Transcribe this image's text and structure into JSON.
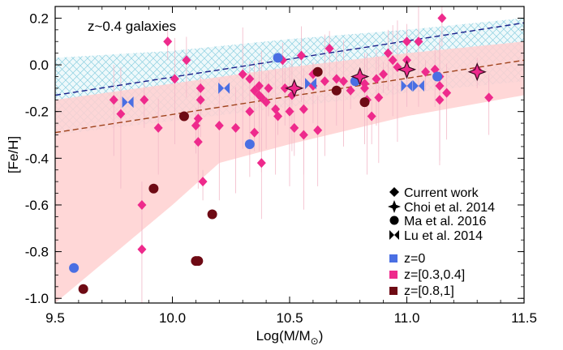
{
  "chart_data": {
    "type": "scatter",
    "title": "",
    "annotation": "z~0.4 galaxies",
    "xlabel": "Log(M/M",
    "xlabel_sub": "⊙",
    "xlabel_close": ")",
    "ylabel": "[Fe/H]",
    "xlim": [
      9.5,
      11.5
    ],
    "ylim": [
      -1.02,
      0.25
    ],
    "xticks": [
      "9.5",
      "10.0",
      "10.5",
      "11.0",
      "11.5"
    ],
    "yticks": [
      "-1.0",
      "-0.8",
      "-0.6",
      "-0.4",
      "-0.2",
      "0.0",
      "0.2"
    ],
    "grid": false,
    "legend_position": "bottom-right",
    "colors": {
      "blue": "#4a6fe3",
      "pink": "#ee2a8c",
      "darkred": "#6e0a14",
      "blue_band": "#9fd8e6",
      "pink_band": "#ffd0d0",
      "blue_line": "#1a1f8a",
      "brown_line": "#a0431c"
    },
    "legend_markers": [
      {
        "marker": "diamond",
        "label": "Current work"
      },
      {
        "marker": "star4",
        "label": "Choi et al. 2014"
      },
      {
        "marker": "circle",
        "label": "Ma et al. 2016"
      },
      {
        "marker": "bowtie",
        "label": "Lu et al. 2014"
      }
    ],
    "legend_colors": [
      {
        "color": "blue",
        "label": "z=0"
      },
      {
        "color": "pink",
        "label": "z=[0.3,0.4]"
      },
      {
        "color": "darkred",
        "label": "z=[0.8,1]"
      }
    ],
    "bands": {
      "blue_upper": [
        [
          9.5,
          0.03
        ],
        [
          10.0,
          0.06
        ],
        [
          10.5,
          0.11
        ],
        [
          11.0,
          0.15
        ],
        [
          11.5,
          0.2
        ]
      ],
      "blue_lower": [
        [
          9.5,
          -0.3
        ],
        [
          10.0,
          -0.24
        ],
        [
          10.5,
          -0.18
        ],
        [
          11.0,
          -0.12
        ],
        [
          11.5,
          -0.07
        ]
      ],
      "pink_upper": [
        [
          9.5,
          -0.15
        ],
        [
          10.0,
          -0.08
        ],
        [
          10.5,
          -0.01
        ],
        [
          11.0,
          0.05
        ],
        [
          11.5,
          0.1
        ]
      ],
      "pink_lower": [
        [
          9.5,
          -1.02
        ],
        [
          10.0,
          -0.6
        ],
        [
          10.2,
          -0.42
        ],
        [
          10.5,
          -0.34
        ],
        [
          11.0,
          -0.22
        ],
        [
          11.5,
          -0.13
        ]
      ]
    },
    "lines": [
      {
        "color": "blue_line",
        "x": [
          9.5,
          11.5
        ],
        "y": [
          -0.13,
          0.18
        ]
      },
      {
        "color": "brown_line",
        "x": [
          9.5,
          11.5
        ],
        "y": [
          -0.29,
          0.02
        ]
      }
    ],
    "series": [
      {
        "marker": "diamond",
        "color": "pink",
        "points": [
          [
            9.98,
            0.1
          ],
          [
            10.06,
            0.02
          ],
          [
            9.75,
            -0.15
          ],
          [
            9.78,
            -0.21
          ],
          [
            9.88,
            -0.15
          ],
          [
            9.94,
            -0.27
          ],
          [
            10.01,
            -0.06
          ],
          [
            10.12,
            -0.1
          ],
          [
            10.12,
            -0.15
          ],
          [
            10.11,
            -0.23
          ],
          [
            10.2,
            -0.26
          ],
          [
            10.1,
            -0.26
          ],
          [
            10.11,
            -0.33
          ],
          [
            10.27,
            -0.27
          ],
          [
            10.13,
            -0.5
          ],
          [
            9.87,
            -0.6
          ],
          [
            9.87,
            -0.79
          ],
          [
            10.3,
            -0.04
          ],
          [
            10.33,
            -0.06
          ],
          [
            10.35,
            -0.11
          ],
          [
            10.33,
            -0.2
          ],
          [
            10.35,
            -0.29
          ],
          [
            10.37,
            -0.09
          ],
          [
            10.37,
            -0.13
          ],
          [
            10.38,
            -0.14
          ],
          [
            10.41,
            -0.1
          ],
          [
            10.4,
            -0.16
          ],
          [
            10.44,
            -0.19
          ],
          [
            10.45,
            -0.22
          ],
          [
            10.48,
            -0.1
          ],
          [
            10.51,
            -0.13
          ],
          [
            10.5,
            -0.2
          ],
          [
            10.52,
            -0.27
          ],
          [
            10.55,
            0.04
          ],
          [
            10.56,
            -0.19
          ],
          [
            10.6,
            -0.04
          ],
          [
            10.6,
            -0.09
          ],
          [
            10.62,
            -0.28
          ],
          [
            10.65,
            -0.07
          ],
          [
            10.67,
            0.07
          ],
          [
            10.7,
            -0.06
          ],
          [
            10.73,
            -0.07
          ],
          [
            10.76,
            -0.11
          ],
          [
            10.82,
            -0.08
          ],
          [
            10.82,
            -0.1
          ],
          [
            10.83,
            -0.15
          ],
          [
            10.85,
            -0.22
          ],
          [
            10.87,
            -0.06
          ],
          [
            10.88,
            -0.14
          ],
          [
            10.9,
            -0.04
          ],
          [
            10.92,
            0.05
          ],
          [
            10.94,
            0.02
          ],
          [
            10.96,
            -0.01
          ],
          [
            11.0,
            0.1
          ],
          [
            11.0,
            0.02
          ],
          [
            11.05,
            0.1
          ],
          [
            11.08,
            -0.03
          ],
          [
            11.12,
            -0.02
          ],
          [
            11.14,
            -0.05
          ],
          [
            11.14,
            -0.09
          ],
          [
            11.15,
            0.2
          ],
          [
            11.17,
            -0.12
          ],
          [
            11.14,
            -0.15
          ],
          [
            11.3,
            -0.02
          ],
          [
            11.35,
            -0.14
          ],
          [
            10.38,
            -0.42
          ],
          [
            10.56,
            -0.3
          ],
          [
            10.47,
            0.02
          ]
        ]
      },
      {
        "marker": "circle",
        "color": "blue",
        "points": [
          [
            9.58,
            -0.87
          ],
          [
            10.33,
            -0.34
          ],
          [
            10.45,
            0.03
          ],
          [
            10.78,
            -0.07
          ],
          [
            11.13,
            -0.05
          ]
        ]
      },
      {
        "marker": "circle",
        "color": "darkred",
        "points": [
          [
            9.62,
            -0.96
          ],
          [
            9.92,
            -0.53
          ],
          [
            10.05,
            -0.22
          ],
          [
            10.1,
            -0.84
          ],
          [
            10.11,
            -0.84
          ],
          [
            10.17,
            -0.64
          ],
          [
            10.62,
            -0.03
          ],
          [
            10.7,
            -0.11
          ],
          [
            10.82,
            -0.16
          ]
        ]
      },
      {
        "marker": "bowtie",
        "color": "blue",
        "points": [
          [
            9.81,
            -0.16
          ],
          [
            10.22,
            -0.1
          ],
          [
            10.59,
            -0.08
          ],
          [
            11.0,
            -0.09
          ],
          [
            11.05,
            -0.09
          ]
        ]
      },
      {
        "marker": "star4",
        "color": "pink",
        "points": [
          [
            10.52,
            -0.1
          ],
          [
            10.8,
            -0.05
          ],
          [
            11.0,
            -0.02
          ],
          [
            11.3,
            -0.03
          ]
        ]
      }
    ]
  }
}
